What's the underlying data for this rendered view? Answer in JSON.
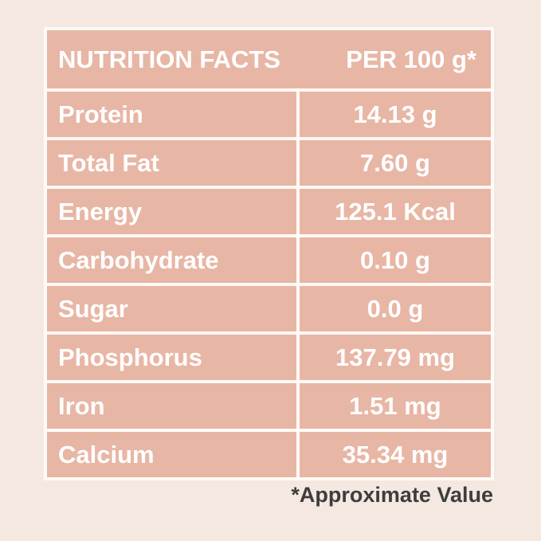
{
  "header": {
    "title": "NUTRITION FACTS",
    "per": "PER 100 g*"
  },
  "table": {
    "rows": [
      [
        "Protein",
        "14.13 g"
      ],
      [
        "Total Fat",
        "7.60 g"
      ],
      [
        "Energy",
        "125.1 Kcal"
      ],
      [
        "Carbohydrate",
        "0.10 g"
      ],
      [
        "Sugar",
        "0.0 g"
      ],
      [
        "Phosphorus",
        "137.79 mg"
      ],
      [
        "Iron",
        "1.51 mg"
      ],
      [
        "Calcium",
        "35.34 mg"
      ]
    ]
  },
  "footnote": "*Approximate Value"
}
